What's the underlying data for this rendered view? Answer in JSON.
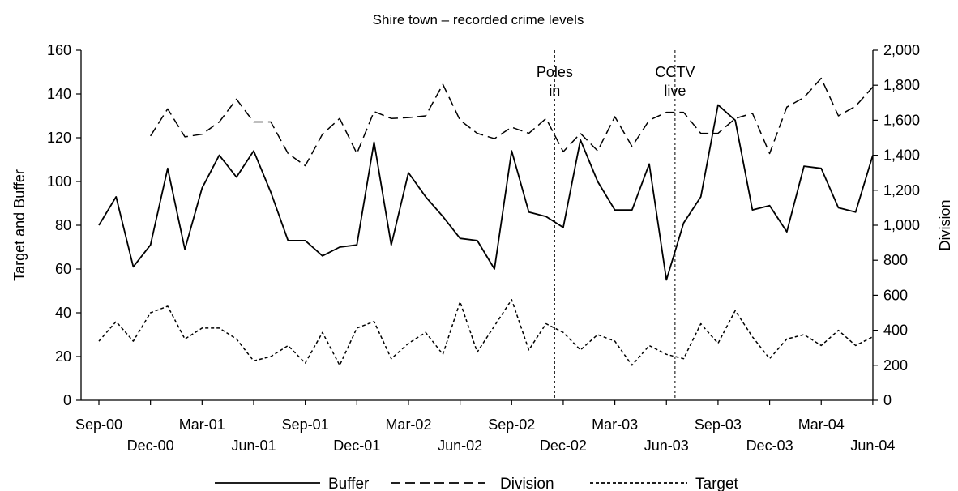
{
  "chart_data": {
    "type": "line",
    "title": "Shire town – recorded crime levels",
    "ylabel_left": "Target and Buffer",
    "ylabel_right": "Division",
    "ylim_left": [
      0,
      160
    ],
    "ylim_right": [
      0,
      2000
    ],
    "yticks_left": [
      "0",
      "20",
      "40",
      "60",
      "80",
      "100",
      "120",
      "140",
      "160"
    ],
    "yticks_right": [
      "0",
      "200",
      "400",
      "600",
      "800",
      "1,000",
      "1,200",
      "1,400",
      "1,600",
      "1,800",
      "2,000"
    ],
    "x_tick_labels": [
      {
        "index": 0,
        "label": "Sep-00",
        "row": 1
      },
      {
        "index": 3,
        "label": "Dec-00",
        "row": 2
      },
      {
        "index": 6,
        "label": "Mar-01",
        "row": 1
      },
      {
        "index": 9,
        "label": "Jun-01",
        "row": 2
      },
      {
        "index": 12,
        "label": "Sep-01",
        "row": 1
      },
      {
        "index": 15,
        "label": "Dec-01",
        "row": 2
      },
      {
        "index": 18,
        "label": "Mar-02",
        "row": 1
      },
      {
        "index": 21,
        "label": "Jun-02",
        "row": 2
      },
      {
        "index": 24,
        "label": "Sep-02",
        "row": 1
      },
      {
        "index": 27,
        "label": "Dec-02",
        "row": 2
      },
      {
        "index": 30,
        "label": "Mar-03",
        "row": 1
      },
      {
        "index": 33,
        "label": "Jun-03",
        "row": 2
      },
      {
        "index": 36,
        "label": "Sep-03",
        "row": 1
      },
      {
        "index": 39,
        "label": "Dec-03",
        "row": 2
      },
      {
        "index": 42,
        "label": "Mar-04",
        "row": 1
      },
      {
        "index": 45,
        "label": "Jun-04",
        "row": 2
      }
    ],
    "x_count": 46,
    "series": [
      {
        "name": "Buffer",
        "axis": "left",
        "style": "solid",
        "values": [
          80,
          93,
          61,
          71,
          106,
          69,
          97,
          112,
          102,
          114,
          95,
          73,
          73,
          66,
          70,
          71,
          118,
          71,
          104,
          93,
          84,
          74,
          73,
          60,
          114,
          86,
          84,
          79,
          119,
          100,
          87,
          87,
          108,
          55,
          81,
          93,
          135,
          128,
          87,
          89,
          77,
          107,
          106,
          88,
          86,
          112
        ]
      },
      {
        "name": "Division",
        "axis": "right",
        "style": "dashed",
        "values": [
          null,
          null,
          null,
          1510,
          1665,
          1505,
          1520,
          1590,
          1720,
          1590,
          1590,
          1410,
          1340,
          1520,
          1610,
          1410,
          1650,
          1610,
          1615,
          1625,
          1805,
          1600,
          1525,
          1495,
          1560,
          1525,
          1610,
          1420,
          1525,
          1425,
          1620,
          1450,
          1600,
          1645,
          1645,
          1525,
          1525,
          1610,
          1640,
          1410,
          1675,
          1730,
          1840,
          1625,
          1680,
          1790
        ]
      },
      {
        "name": "Target",
        "axis": "left",
        "style": "dotted",
        "values": [
          27,
          36,
          27,
          40,
          43,
          28,
          33,
          33,
          28,
          18,
          20,
          25,
          17,
          31,
          16,
          33,
          36,
          19,
          26,
          31,
          21,
          45,
          22,
          34,
          46,
          23,
          35,
          31,
          23,
          30,
          27,
          16,
          25,
          21,
          19,
          35,
          26,
          41,
          29,
          19,
          28,
          30,
          25,
          32,
          25,
          29
        ]
      }
    ],
    "annotations": [
      {
        "index": 26.5,
        "lines": [
          "Poles",
          "in"
        ]
      },
      {
        "index": 33.5,
        "lines": [
          "CCTV",
          "live"
        ]
      }
    ],
    "legend": {
      "position": "bottom",
      "entries": [
        "Buffer",
        "Division",
        "Target"
      ]
    },
    "grid": false
  }
}
